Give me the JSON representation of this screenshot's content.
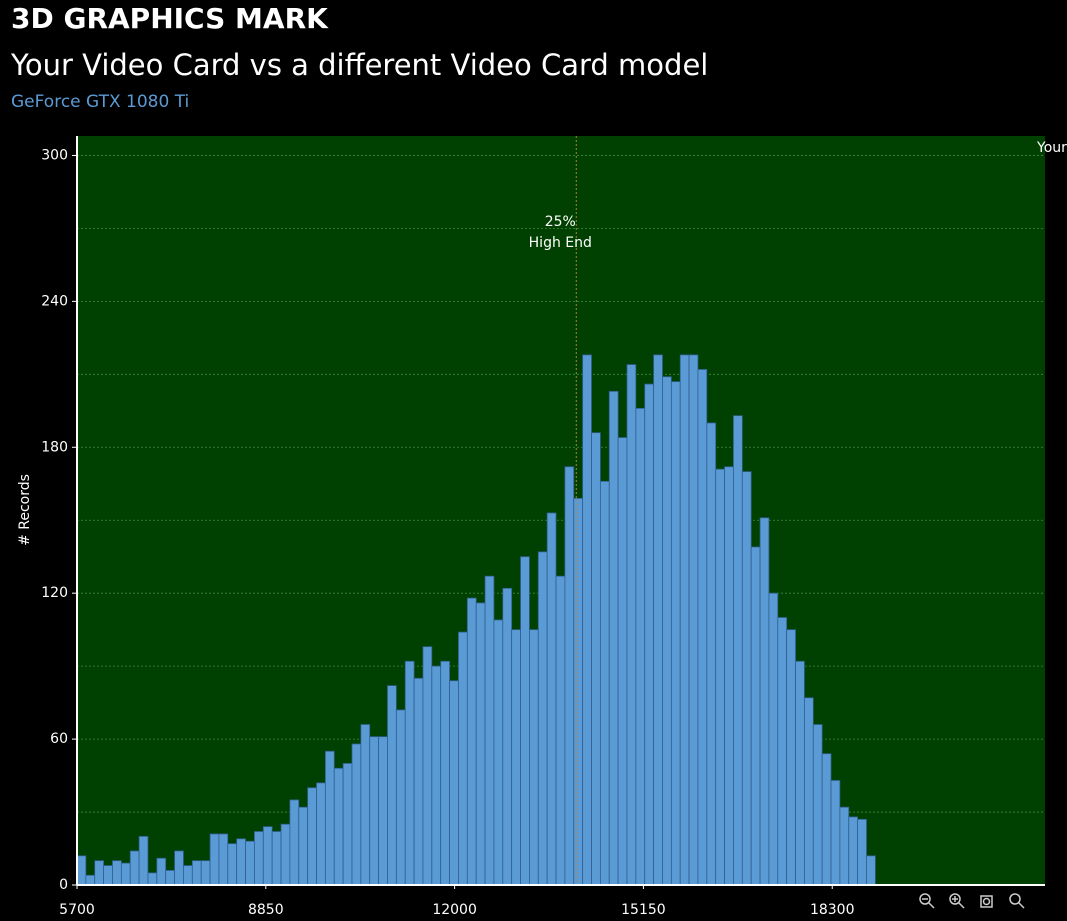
{
  "chart_data": {
    "type": "histogram",
    "title": "3D GRAPHICS MARK",
    "subtitle": "Your Video Card vs a different Video Card model",
    "card_name": "GeForce GTX 1080 Ti",
    "y_label": "# Records",
    "side_label": "Your",
    "color": "#5b9bd5",
    "background": "#004000",
    "grid": true,
    "bins": [
      5700,
      5848,
      5996,
      6144,
      6292,
      6440,
      6588,
      6736,
      6884,
      7032,
      7180,
      7328,
      7476,
      7624,
      7772,
      7920,
      8068,
      8216,
      8364,
      8512,
      8660,
      8808,
      8956,
      9104,
      9252,
      9400,
      9548,
      9696,
      9844,
      9992,
      10140,
      10288,
      10436,
      10584,
      10732,
      10880,
      11028,
      11176,
      11324,
      11472,
      11620,
      11768,
      11916,
      12064,
      12212,
      12360,
      12508,
      12656,
      12804,
      12952,
      13100,
      13248,
      13396,
      13544,
      13692,
      13840,
      13988,
      14136,
      14284,
      14432,
      14580,
      14728,
      14876,
      15024,
      15172,
      15320,
      15468,
      15616,
      15764,
      15912,
      16060,
      16208,
      16356,
      16504,
      16652,
      16800,
      16948,
      17096,
      17244,
      17392,
      17540,
      17688,
      17836,
      17984,
      18132,
      18280,
      18428,
      18576,
      18724,
      18872,
      19020
    ],
    "values": [
      12,
      4,
      10,
      8,
      10,
      9,
      14,
      20,
      5,
      11,
      6,
      14,
      8,
      10,
      10,
      21,
      21,
      17,
      19,
      18,
      22,
      24,
      22,
      25,
      35,
      32,
      40,
      42,
      55,
      48,
      50,
      58,
      66,
      61,
      61,
      82,
      72,
      92,
      85,
      98,
      90,
      92,
      84,
      104,
      118,
      116,
      127,
      109,
      122,
      105,
      135,
      105,
      137,
      153,
      127,
      172,
      159,
      218,
      186,
      166,
      203,
      184,
      214,
      196,
      206,
      218,
      209,
      207,
      218,
      218,
      212,
      190,
      171,
      172,
      193,
      170,
      139,
      151,
      120,
      110,
      105,
      92,
      77,
      66,
      54,
      43,
      32,
      28,
      27,
      12
    ],
    "xlim": [
      5700,
      21850
    ],
    "ylim": [
      0,
      308
    ],
    "xticks": [
      5700,
      8850,
      12000,
      15150,
      18300
    ],
    "yticks": [
      0,
      60,
      120,
      180,
      240,
      300
    ],
    "minor_yticks": [
      30,
      90,
      150,
      210,
      270
    ],
    "annotation": {
      "x": 14030,
      "label": "25%",
      "text": "High End"
    }
  }
}
